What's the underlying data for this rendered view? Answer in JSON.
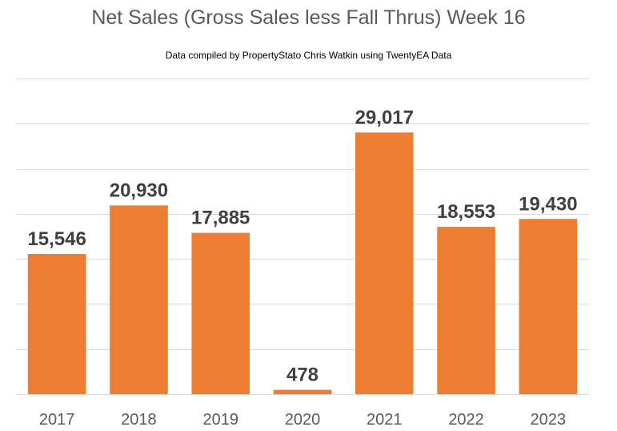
{
  "chart_data": {
    "type": "bar",
    "title": "Net Sales (Gross Sales less Fall Thrus)  Week 16",
    "subtitle": "Data compiled by PropertyStato Chris Watkin using TwentyEA Data",
    "categories": [
      "2017",
      "2018",
      "2019",
      "2020",
      "2021",
      "2022",
      "2023"
    ],
    "values": [
      15546,
      20930,
      17885,
      478,
      29017,
      18553,
      19430
    ],
    "data_labels": [
      "15,546",
      "20,930",
      "17,885",
      "478",
      "29,017",
      "18,553",
      "19,430"
    ],
    "ylim": [
      0,
      35000
    ],
    "grid": true,
    "bar_color": "#ed7d31"
  }
}
